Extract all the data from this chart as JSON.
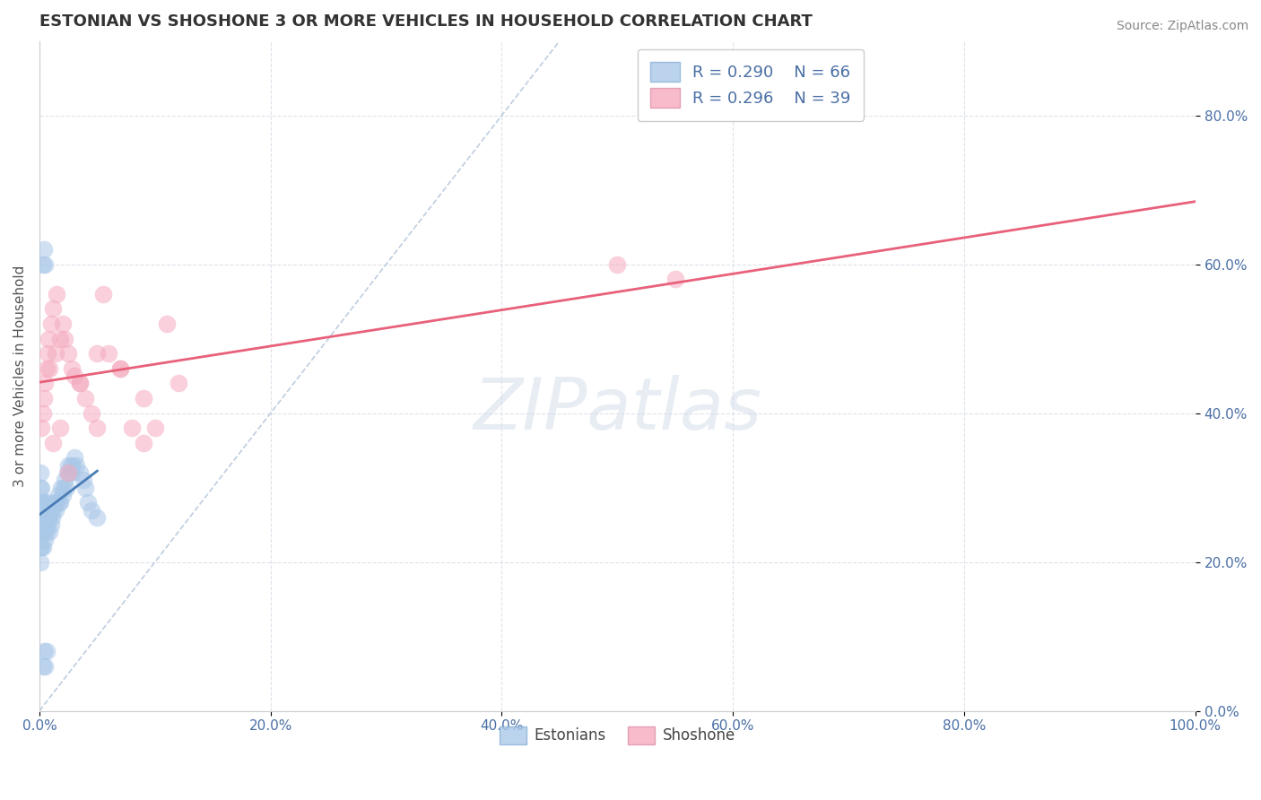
{
  "title": "ESTONIAN VS SHOSHONE 3 OR MORE VEHICLES IN HOUSEHOLD CORRELATION CHART",
  "source": "Source: ZipAtlas.com",
  "ylabel": "3 or more Vehicles in Household",
  "xlim": [
    0,
    100
  ],
  "ylim": [
    0,
    90
  ],
  "xticks": [
    0,
    20,
    40,
    60,
    80,
    100
  ],
  "xticklabels": [
    "0.0%",
    "20.0%",
    "40.0%",
    "60.0%",
    "80.0%",
    "100.0%"
  ],
  "yticks": [
    0,
    20,
    40,
    60,
    80
  ],
  "yticklabels": [
    "0.0%",
    "20.0%",
    "40.0%",
    "60.0%",
    "80.0%"
  ],
  "legend_r": [
    0.29,
    0.296
  ],
  "legend_n": [
    66,
    39
  ],
  "estonian_color": "#aac8e8",
  "shoshone_color": "#f5aabf",
  "estonian_line_color": "#4a7db5",
  "shoshone_line_color": "#e8607a",
  "ref_line_color": "#b8c8dc",
  "background_color": "#ffffff",
  "grid_color": "#dde2ea",
  "title_color": "#333333",
  "source_color": "#888888",
  "tick_color": "#4a6fa5",
  "estonian_x": [
    0.1,
    0.1,
    0.1,
    0.1,
    0.1,
    0.1,
    0.1,
    0.2,
    0.2,
    0.2,
    0.2,
    0.2,
    0.3,
    0.3,
    0.3,
    0.3,
    0.4,
    0.4,
    0.4,
    0.5,
    0.5,
    0.5,
    0.6,
    0.6,
    0.7,
    0.7,
    0.8,
    0.8,
    0.9,
    0.9,
    1.0,
    1.0,
    1.1,
    1.2,
    1.3,
    1.4,
    1.5,
    1.6,
    1.7,
    1.8,
    1.9,
    2.0,
    2.1,
    2.2,
    2.3,
    2.4,
    2.5,
    2.6,
    2.7,
    2.8,
    2.9,
    3.0,
    3.2,
    3.5,
    3.8,
    4.0,
    4.2,
    4.5,
    5.0,
    0.3,
    0.4,
    0.5,
    0.3,
    0.4,
    0.5,
    0.6
  ],
  "estonian_y": [
    22,
    24,
    26,
    28,
    30,
    32,
    20,
    22,
    24,
    26,
    28,
    30,
    22,
    24,
    26,
    28,
    24,
    26,
    28,
    23,
    25,
    27,
    24,
    26,
    25,
    27,
    26,
    28,
    24,
    26,
    25,
    27,
    26,
    27,
    28,
    27,
    28,
    29,
    28,
    28,
    30,
    29,
    30,
    31,
    30,
    32,
    33,
    32,
    33,
    32,
    33,
    34,
    33,
    32,
    31,
    30,
    28,
    27,
    26,
    60,
    62,
    60,
    6,
    8,
    6,
    8
  ],
  "shoshone_x": [
    0.2,
    0.3,
    0.4,
    0.5,
    0.6,
    0.7,
    0.8,
    0.9,
    1.0,
    1.2,
    1.4,
    1.5,
    1.8,
    2.0,
    2.2,
    2.5,
    2.8,
    3.0,
    3.5,
    4.0,
    4.5,
    5.0,
    5.5,
    6.0,
    7.0,
    8.0,
    9.0,
    10.0,
    11.0,
    50.0,
    55.0,
    1.2,
    1.8,
    2.5,
    3.5,
    5.0,
    7.0,
    9.0,
    12.0
  ],
  "shoshone_y": [
    38,
    40,
    42,
    44,
    46,
    48,
    50,
    46,
    52,
    54,
    48,
    56,
    50,
    52,
    50,
    48,
    46,
    45,
    44,
    42,
    40,
    38,
    56,
    48,
    46,
    38,
    42,
    38,
    52,
    60,
    58,
    36,
    38,
    32,
    44,
    48,
    46,
    36,
    44
  ]
}
